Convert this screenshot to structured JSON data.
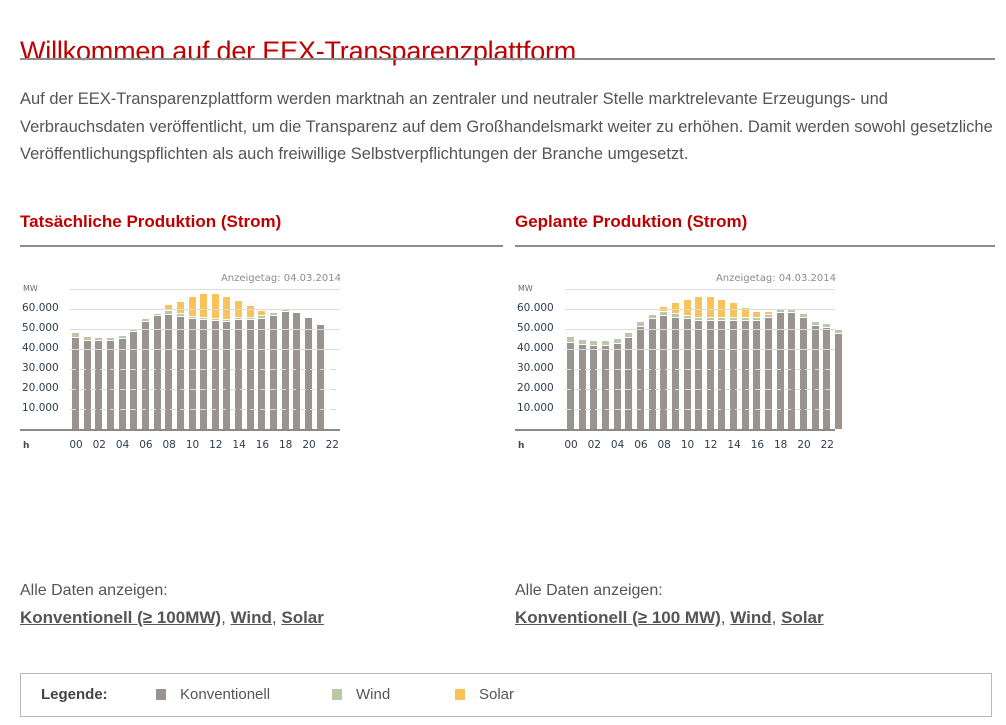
{
  "page": {
    "title": "Willkommen auf der EEX-Transparenzplattform",
    "intro": "Auf der EEX-Transparenzplattform werden marktnah an zentraler und neutraler Stelle marktrelevante Erzeugungs- und Verbrauchsdaten veröffentlicht, um die Transparenz auf dem Großhandelsmarkt weiter zu erhöhen. Damit werden sowohl gesetzliche Veröffentlichungspflichten als auch freiwillige Selbstverpflichtungen der Branche umgesetzt."
  },
  "colors": {
    "accent": "#c00000",
    "konventionell": "#9a9490",
    "wind": "#b9c9a7",
    "solar": "#fac35a"
  },
  "sections": [
    {
      "heading": "Tatsächliche Produktion (Strom)",
      "alle_label": "Alle Daten anzeigen:",
      "links": [
        {
          "label": "Konventionell (≥ 100MW)"
        },
        {
          "label": "Wind"
        },
        {
          "label": "Solar"
        }
      ]
    },
    {
      "heading": "Geplante Produktion (Strom)",
      "alle_label": "Alle Daten anzeigen:",
      "links": [
        {
          "label": "Konventionell (≥ 100 MW)"
        },
        {
          "label": "Wind"
        },
        {
          "label": "Solar"
        }
      ]
    }
  ],
  "legend": {
    "label": "Legende:",
    "items": [
      {
        "label": "Konventionell",
        "color": "#9a9490"
      },
      {
        "label": "Wind",
        "color": "#b9c9a7"
      },
      {
        "label": "Solar",
        "color": "#fac35a"
      }
    ]
  },
  "chart_data": [
    {
      "type": "bar",
      "stacked": true,
      "title": "Tatsächliche Produktion (Strom)",
      "subtitle": "Anzeigetag: 04.03.2014",
      "ylabel": "MW",
      "xlabel": "h",
      "ylim": [
        0,
        70000
      ],
      "yticks": [
        "10.000",
        "20.000",
        "30.000",
        "40.000",
        "50.000",
        "60.000"
      ],
      "xticks": [
        "00",
        "02",
        "04",
        "06",
        "08",
        "10",
        "12",
        "14",
        "16",
        "18",
        "20",
        "22"
      ],
      "categories": [
        "00",
        "01",
        "02",
        "03",
        "04",
        "05",
        "06",
        "07",
        "08",
        "09",
        "10",
        "11",
        "12",
        "13",
        "14",
        "15",
        "16",
        "17",
        "18",
        "19",
        "20",
        "21"
      ],
      "series": [
        {
          "name": "Konventionell",
          "values": [
            45500,
            44000,
            44000,
            44000,
            45000,
            48500,
            53500,
            56500,
            57000,
            56000,
            55000,
            54500,
            54000,
            53500,
            54500,
            54500,
            55000,
            56500,
            58500,
            58000,
            55500,
            52000
          ]
        },
        {
          "name": "Wind",
          "values": [
            2000,
            1500,
            1000,
            1000,
            1000,
            1000,
            1000,
            500,
            1500,
            1000,
            500,
            500,
            500,
            500,
            500,
            500,
            1000,
            1000,
            1000,
            0,
            0,
            0
          ]
        },
        {
          "name": "Solar",
          "values": [
            0,
            0,
            0,
            0,
            0,
            0,
            0,
            0,
            2500,
            5500,
            9500,
            11500,
            12000,
            11000,
            8000,
            5500,
            2000,
            0,
            0,
            0,
            0,
            0
          ]
        }
      ],
      "grid": true
    },
    {
      "type": "bar",
      "stacked": true,
      "title": "Geplante Produktion (Strom)",
      "subtitle": "Anzeigetag: 04.03.2014",
      "ylabel": "MW",
      "xlabel": "h",
      "ylim": [
        0,
        70000
      ],
      "yticks": [
        "10.000",
        "20.000",
        "30.000",
        "40.000",
        "50.000",
        "60.000"
      ],
      "xticks": [
        "00",
        "02",
        "04",
        "06",
        "08",
        "10",
        "12",
        "14",
        "16",
        "18",
        "20",
        "22"
      ],
      "categories": [
        "00",
        "01",
        "02",
        "03",
        "04",
        "05",
        "06",
        "07",
        "08",
        "09",
        "10",
        "11",
        "12",
        "13",
        "14",
        "15",
        "16",
        "17",
        "18",
        "19",
        "20",
        "21",
        "22",
        "23"
      ],
      "series": [
        {
          "name": "Konventionell",
          "values": [
            43000,
            42000,
            41500,
            41500,
            42500,
            45500,
            51000,
            55000,
            56500,
            55500,
            55000,
            54000,
            54000,
            54000,
            54000,
            54000,
            54000,
            55500,
            58000,
            58000,
            55500,
            51500,
            50500,
            47500
          ]
        },
        {
          "name": "Wind",
          "values": [
            2500,
            2000,
            2000,
            2000,
            2000,
            2000,
            2000,
            1500,
            1500,
            1500,
            1000,
            1000,
            1000,
            1000,
            1000,
            1000,
            1000,
            1000,
            1500,
            1500,
            1500,
            1500,
            1500,
            1500
          ]
        },
        {
          "name": "Solar",
          "values": [
            0,
            0,
            0,
            0,
            0,
            0,
            0,
            0,
            2000,
            5000,
            7500,
            10000,
            10000,
            8500,
            7000,
            4500,
            2500,
            1000,
            0,
            0,
            0,
            0,
            0,
            0
          ]
        }
      ],
      "grid": true
    }
  ]
}
